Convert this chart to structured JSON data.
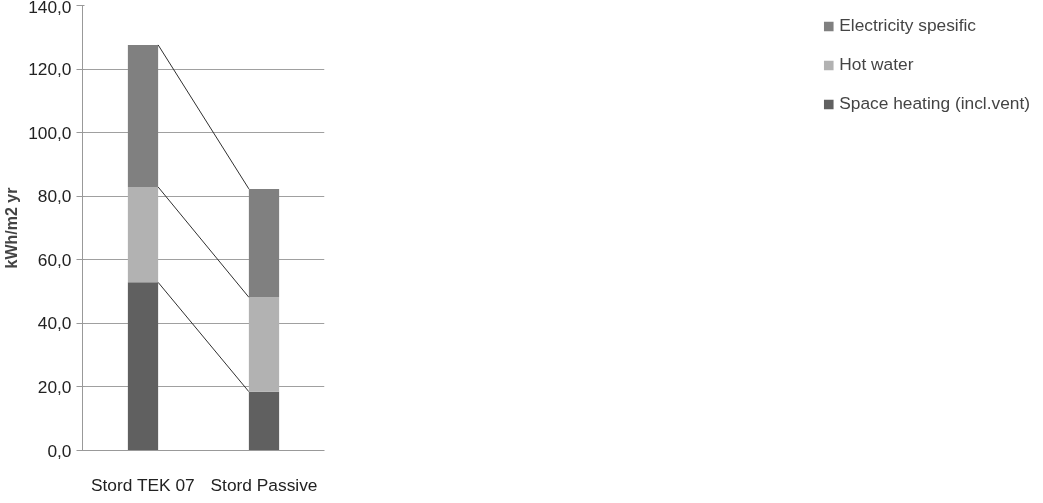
{
  "chart_data": {
    "type": "bar",
    "stacked": true,
    "ylabel": "kWh/m2 yr",
    "categories": [
      "Stord TEK 07",
      "Stord Passive"
    ],
    "series": [
      {
        "name": "Space heating (incl.vent)",
        "color": "#606060",
        "values": [
          52.9,
          18.5
        ]
      },
      {
        "name": "Hot water",
        "color": "#b2b2b2",
        "values": [
          30.0,
          29.7
        ]
      },
      {
        "name": "Electricity spesific",
        "color": "#808080",
        "values": [
          44.7,
          34.1
        ]
      }
    ],
    "ylim": [
      0,
      140
    ],
    "yticks": [
      {
        "value": 0,
        "label": "0,0"
      },
      {
        "value": 20,
        "label": "20,0"
      },
      {
        "value": 40,
        "label": "40,0"
      },
      {
        "value": 60,
        "label": "60,0"
      },
      {
        "value": 80,
        "label": "80,0"
      },
      {
        "value": 100,
        "label": "100,0"
      },
      {
        "value": 120,
        "label": "120,0"
      },
      {
        "value": 140,
        "label": "140,0"
      }
    ],
    "grid": "y",
    "legend": "right"
  }
}
